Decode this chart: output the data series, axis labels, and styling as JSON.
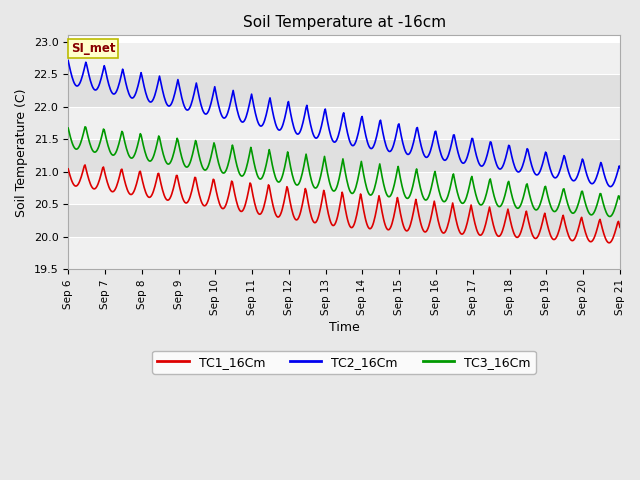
{
  "title": "Soil Temperature at -16cm",
  "xlabel": "Time",
  "ylabel": "Soil Temperature (C)",
  "ylim": [
    19.5,
    23.1
  ],
  "background_color": "#e8e8e8",
  "plot_bg_color": "#ffffff",
  "grid_color": "#cccccc",
  "annotation_text": "SI_met",
  "annotation_bg": "#ffffcc",
  "annotation_border": "#bbbb00",
  "annotation_text_color": "#880000",
  "xtick_labels": [
    "Sep 6",
    "Sep 7",
    "Sep 8",
    "Sep 9",
    "Sep 10",
    "Sep 11",
    "Sep 12",
    "Sep 13",
    "Sep 14",
    "Sep 15",
    "Sep 16",
    "Sep 17",
    "Sep 18",
    "Sep 19",
    "Sep 20",
    "Sep 21"
  ],
  "series": [
    {
      "label": "TC1_16Cm",
      "color": "#dd0000",
      "linewidth": 1.2
    },
    {
      "label": "TC2_16Cm",
      "color": "#0000ee",
      "linewidth": 1.2
    },
    {
      "label": "TC3_16Cm",
      "color": "#009900",
      "linewidth": 1.2
    }
  ],
  "yticks": [
    19.5,
    20.0,
    20.5,
    21.0,
    21.5,
    22.0,
    22.5,
    23.0
  ],
  "band_colors": [
    "#f0f0f0",
    "#e0e0e0"
  ]
}
